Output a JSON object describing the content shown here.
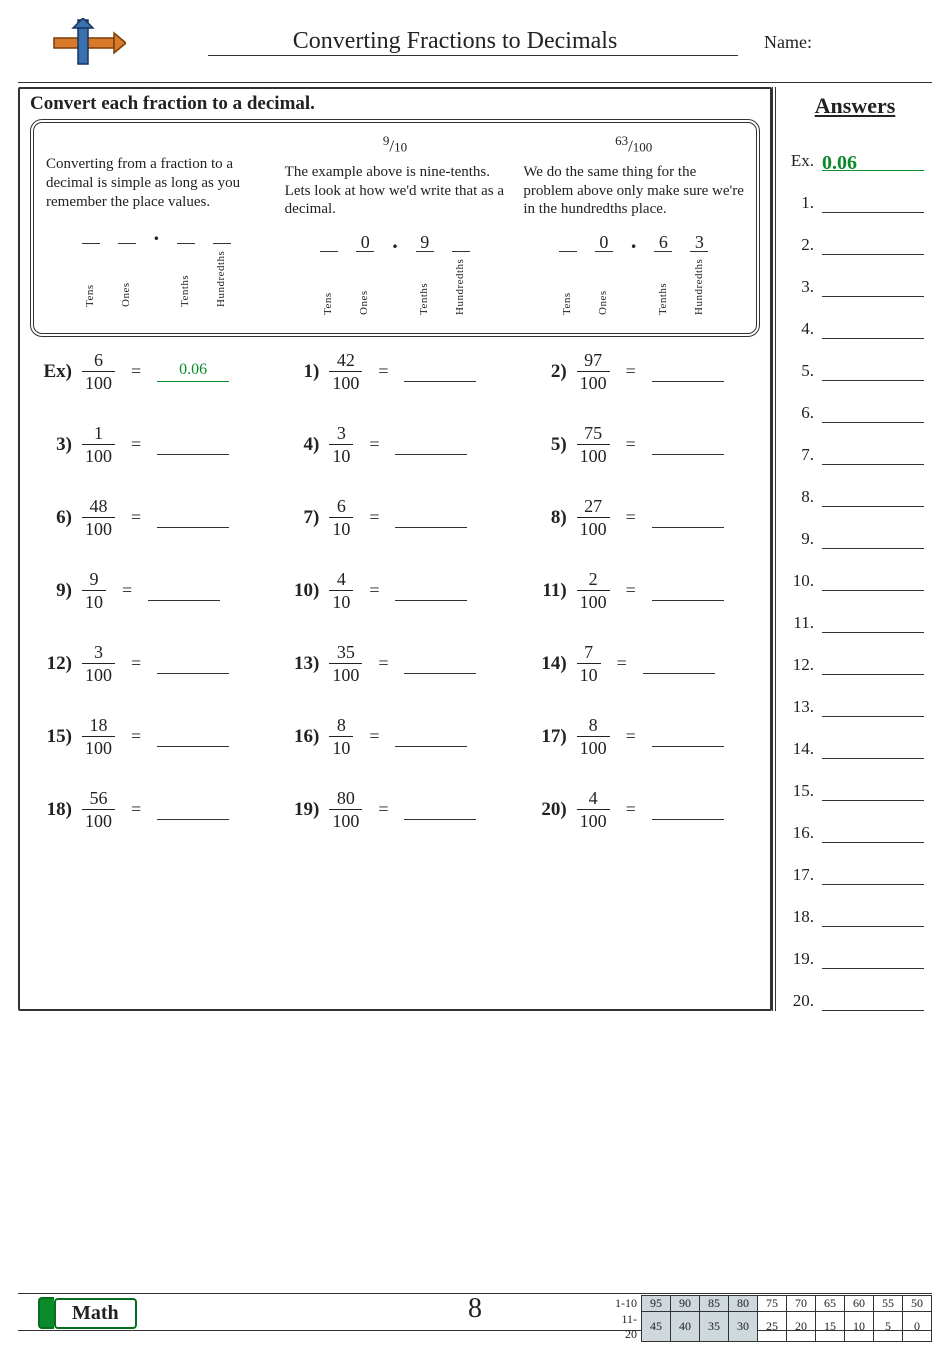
{
  "title": "Converting Fractions to Decimals",
  "name_label": "Name:",
  "instruction": "Convert each fraction to a decimal.",
  "answers_title": "Answers",
  "page_number": "8",
  "math_label": "Math",
  "explain": {
    "col1": {
      "text": "Converting from a fraction to a decimal is simple as long as you remember the place values.",
      "pv": {
        "tens": "",
        "ones": "",
        "tenths": "",
        "hundredths": ""
      }
    },
    "col2": {
      "small_num": "9",
      "small_den": "10",
      "text": "The example above is nine-tenths. Lets look at how we'd write that as a decimal.",
      "pv": {
        "tens": "",
        "ones": "0",
        "tenths": "9",
        "hundredths": ""
      }
    },
    "col3": {
      "small_num": "63",
      "small_den": "100",
      "text": "We do the same thing for the problem above only make sure we're in the hundredths place.",
      "pv": {
        "tens": "",
        "ones": "0",
        "tenths": "6",
        "hundredths": "3"
      }
    },
    "pv_labels": {
      "tens": "Tens",
      "ones": "Ones",
      "tenths": "Tenths",
      "hundredths": "Hundredths"
    }
  },
  "problems": [
    {
      "n": "Ex)",
      "num": "6",
      "den": "100",
      "ans": "0.06",
      "ex": true
    },
    {
      "n": "1)",
      "num": "42",
      "den": "100"
    },
    {
      "n": "2)",
      "num": "97",
      "den": "100"
    },
    {
      "n": "3)",
      "num": "1",
      "den": "100"
    },
    {
      "n": "4)",
      "num": "3",
      "den": "10"
    },
    {
      "n": "5)",
      "num": "75",
      "den": "100"
    },
    {
      "n": "6)",
      "num": "48",
      "den": "100"
    },
    {
      "n": "7)",
      "num": "6",
      "den": "10"
    },
    {
      "n": "8)",
      "num": "27",
      "den": "100"
    },
    {
      "n": "9)",
      "num": "9",
      "den": "10"
    },
    {
      "n": "10)",
      "num": "4",
      "den": "10"
    },
    {
      "n": "11)",
      "num": "2",
      "den": "100"
    },
    {
      "n": "12)",
      "num": "3",
      "den": "100"
    },
    {
      "n": "13)",
      "num": "35",
      "den": "100"
    },
    {
      "n": "14)",
      "num": "7",
      "den": "10"
    },
    {
      "n": "15)",
      "num": "18",
      "den": "100"
    },
    {
      "n": "16)",
      "num": "8",
      "den": "10"
    },
    {
      "n": "17)",
      "num": "8",
      "den": "100"
    },
    {
      "n": "18)",
      "num": "56",
      "den": "100"
    },
    {
      "n": "19)",
      "num": "80",
      "den": "100"
    },
    {
      "n": "20)",
      "num": "4",
      "den": "100"
    }
  ],
  "answers_list": [
    {
      "lbl": "Ex.",
      "val": "0.06",
      "ex": true
    },
    {
      "lbl": "1."
    },
    {
      "lbl": "2."
    },
    {
      "lbl": "3."
    },
    {
      "lbl": "4."
    },
    {
      "lbl": "5."
    },
    {
      "lbl": "6."
    },
    {
      "lbl": "7."
    },
    {
      "lbl": "8."
    },
    {
      "lbl": "9."
    },
    {
      "lbl": "10."
    },
    {
      "lbl": "11."
    },
    {
      "lbl": "12."
    },
    {
      "lbl": "13."
    },
    {
      "lbl": "14."
    },
    {
      "lbl": "15."
    },
    {
      "lbl": "16."
    },
    {
      "lbl": "17."
    },
    {
      "lbl": "18."
    },
    {
      "lbl": "19."
    },
    {
      "lbl": "20."
    }
  ],
  "score": {
    "row1_label": "1-10",
    "row2_label": "11-20",
    "row1": [
      "95",
      "90",
      "85",
      "80",
      "75",
      "70",
      "65",
      "60",
      "55",
      "50"
    ],
    "row2": [
      "45",
      "40",
      "35",
      "30",
      "25",
      "20",
      "15",
      "10",
      "5",
      "0"
    ]
  },
  "colors": {
    "accent": "#0a8a2a"
  }
}
